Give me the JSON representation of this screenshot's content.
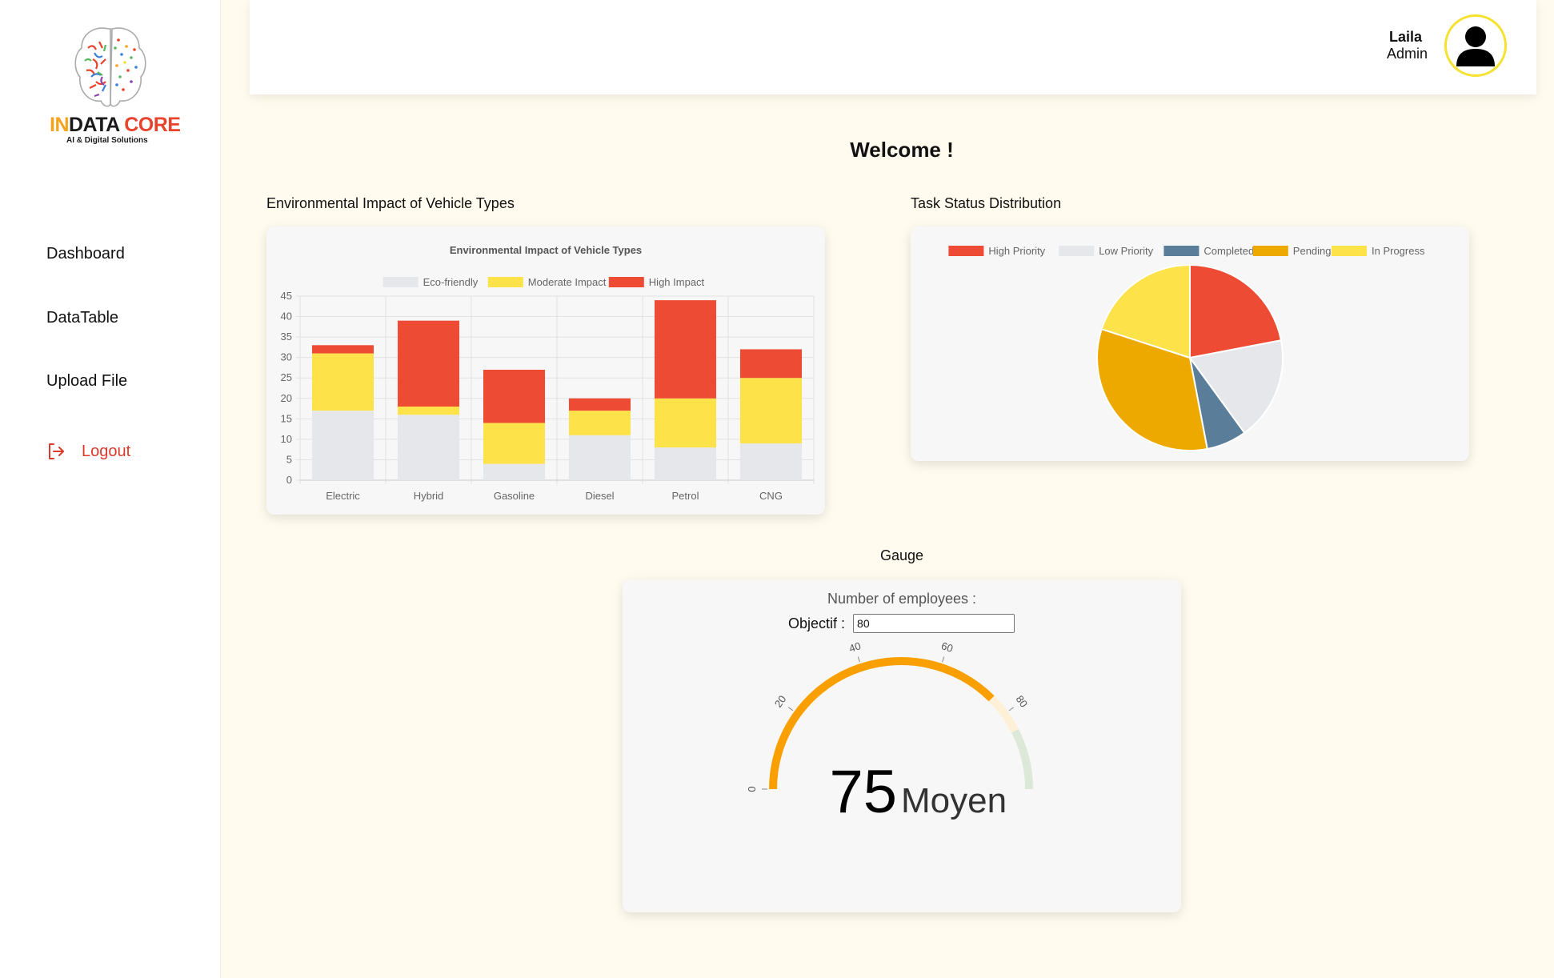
{
  "brand": {
    "name_part1": "IN",
    "name_part2": "DATA ",
    "name_part3": "CORE",
    "tagline": "AI & Digital Solutions"
  },
  "sidebar": {
    "items": [
      {
        "label": "Dashboard"
      },
      {
        "label": "DataTable"
      },
      {
        "label": "Upload File"
      }
    ],
    "logout_label": "Logout"
  },
  "user": {
    "name": "Laila",
    "role": "Admin"
  },
  "page": {
    "welcome": "Welcome !"
  },
  "sections": {
    "bar_title": "Environmental Impact of Vehicle Types",
    "pie_title": "Task Status Distribution",
    "gauge_title": "Gauge"
  },
  "gauge": {
    "label": "Number of employees :",
    "objectif_label": "Objectif :",
    "objectif_value": "80",
    "value": 75,
    "value_text": "75",
    "status": "Moyen",
    "min": 0,
    "max": 100,
    "ticks": [
      "0",
      "20",
      "40",
      "60",
      "80"
    ],
    "color_main": "#f9a000",
    "color_warn": "#fdf0d6",
    "color_ok": "#dde9d8"
  },
  "colors": {
    "accent_red": "#e8432c",
    "accent_yellow": "#f5e12e",
    "eco": "#e5e7ea",
    "moderate": "#fee24a",
    "high": "#ee4b34",
    "completed": "#5a7d99",
    "pending": "#eea900"
  },
  "chart_data": [
    {
      "type": "bar",
      "stacked": true,
      "title": "Environmental Impact of Vehicle Types",
      "categories": [
        "Electric",
        "Hybrid",
        "Gasoline",
        "Diesel",
        "Petrol",
        "CNG"
      ],
      "series": [
        {
          "name": "Eco-friendly",
          "color": "#e5e7ea",
          "values": [
            17,
            16,
            4,
            11,
            8,
            9
          ]
        },
        {
          "name": "Moderate Impact",
          "color": "#fee24a",
          "values": [
            14,
            2,
            10,
            6,
            12,
            16
          ]
        },
        {
          "name": "High Impact",
          "color": "#ee4b34",
          "values": [
            2,
            21,
            13,
            3,
            24,
            7
          ]
        }
      ],
      "ylim": [
        0,
        45
      ],
      "yticks": [
        "0",
        "5",
        "10",
        "15",
        "20",
        "25",
        "30",
        "35",
        "40",
        "45"
      ],
      "grid": true,
      "legend": "top"
    },
    {
      "type": "pie",
      "labels": [
        "High Priority",
        "Low Priority",
        "Completed",
        "Pending",
        "In Progress"
      ],
      "values": [
        22,
        18,
        7,
        33,
        20
      ],
      "colors": [
        "#ee4b34",
        "#e5e7ea",
        "#5a7d99",
        "#eea900",
        "#fee24a"
      ],
      "legend": "top"
    }
  ]
}
